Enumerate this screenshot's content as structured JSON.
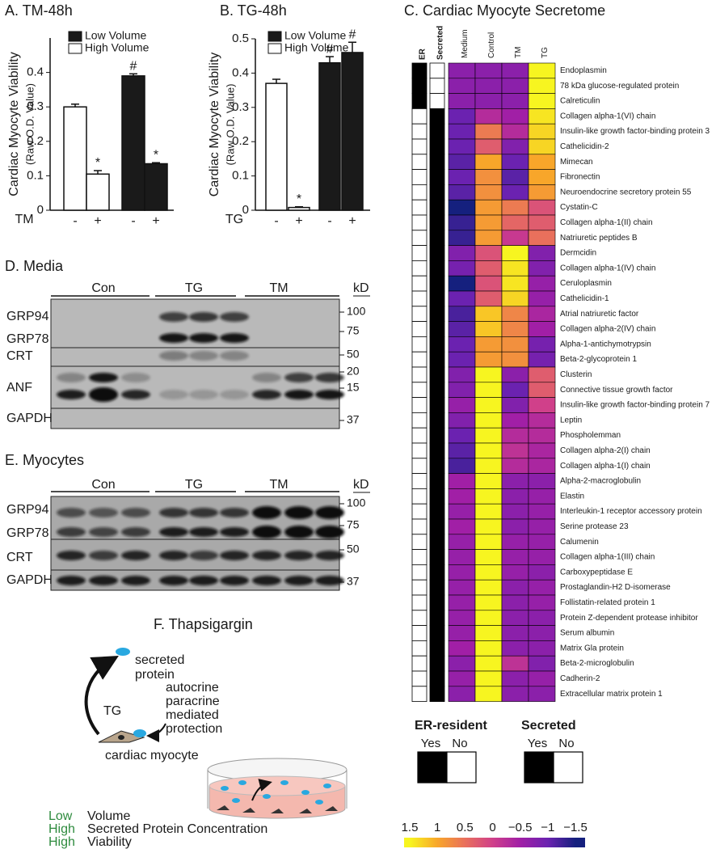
{
  "chart_data": [
    {
      "type": "bar",
      "title": "A. TM-48h",
      "ylabel": "Cardiac Myocyte Viability",
      "ylabel_sub": "(Raw O.D. Value)",
      "xlabel": "TM",
      "categories": [
        "-",
        "+",
        "-",
        "+"
      ],
      "ylim": [
        0,
        0.5
      ],
      "yticks": [
        0,
        0.1,
        0.2,
        0.3,
        0.4
      ],
      "series": [
        {
          "name": "Low Volume",
          "color": "#1a1a1a",
          "values": [
            null,
            null,
            0.39,
            0.135
          ],
          "errors": [
            null,
            null,
            0.006,
            0.003
          ],
          "annotations": [
            null,
            null,
            "#",
            "*"
          ]
        },
        {
          "name": "High Volume",
          "color": "#ffffff",
          "values": [
            0.3,
            0.105,
            null,
            null
          ],
          "errors": [
            0.008,
            0.01,
            null,
            null
          ],
          "annotations": [
            null,
            "*",
            null,
            null
          ]
        }
      ]
    },
    {
      "type": "bar",
      "title": "B. TG-48h",
      "ylabel": "Cardiac Myocyte Viability",
      "ylabel_sub": "(Raw O.D. Value)",
      "xlabel": "TG",
      "categories": [
        "-",
        "+",
        "-",
        "+"
      ],
      "ylim": [
        0,
        0.5
      ],
      "yticks": [
        0,
        0.1,
        0.2,
        0.3,
        0.4,
        0.5
      ],
      "series": [
        {
          "name": "Low Volume",
          "color": "#1a1a1a",
          "values": [
            null,
            null,
            0.43,
            0.46
          ],
          "errors": [
            null,
            null,
            0.018,
            0.03
          ],
          "annotations": [
            null,
            null,
            "#",
            "#"
          ]
        },
        {
          "name": "High Volume",
          "color": "#ffffff",
          "values": [
            0.37,
            0.008,
            null,
            null
          ],
          "errors": [
            0.012,
            0.002,
            null,
            null
          ],
          "annotations": [
            null,
            "*",
            null,
            null
          ]
        }
      ]
    },
    {
      "type": "heatmap",
      "title": "C. Cardiac Myocyte Secretome",
      "columns": [
        "Medium",
        "Control",
        "TM",
        "TG"
      ],
      "rows": [
        "Endoplasmin",
        "78 kDa glucose-regulated protein",
        "Calreticulin",
        "Collagen alpha-1(VI) chain",
        "Insulin-like growth factor-binding protein 3",
        "Cathelicidin-2",
        "Mimecan",
        "Fibronectin",
        "Neuroendocrine secretory protein 55",
        "Cystatin-C",
        "Collagen alpha-1(II) chain",
        "Natriuretic peptides B",
        "Dermcidin",
        "Collagen alpha-1(IV) chain",
        "Ceruloplasmin",
        "Cathelicidin-1",
        "Atrial natriuretic factor",
        "Collagen alpha-2(IV) chain",
        "Alpha-1-antichymotrypsin",
        "Beta-2-glycoprotein 1",
        "Clusterin",
        "Connective tissue growth factor",
        "Insulin-like growth factor-binding protein 7",
        "Leptin",
        "Phospholemman",
        "Collagen alpha-2(I) chain",
        "Collagen alpha-1(I) chain",
        "Alpha-2-macroglobulin",
        "Elastin",
        "Interleukin-1 receptor accessory protein",
        "Serine protease 23",
        "Calumenin",
        "Collagen alpha-1(III) chain",
        "Carboxypeptidase E",
        "Prostaglandin-H2 D-isomerase",
        "Follistatin-related protein 1",
        "Protein Z-dependent protease inhibitor",
        "Serum albumin",
        "Matrix Gla protein",
        "Beta-2-microglobulin",
        "Cadherin-2",
        "Extracellular matrix protein 1"
      ],
      "values": [
        [
          -0.7,
          -0.7,
          -0.7,
          1.5
        ],
        [
          -0.7,
          -0.7,
          -0.7,
          1.5
        ],
        [
          -0.7,
          -0.7,
          -0.7,
          1.5
        ],
        [
          -1.0,
          -0.3,
          -0.5,
          1.4
        ],
        [
          -1.0,
          0.6,
          -0.3,
          1.3
        ],
        [
          -1.0,
          0.3,
          -0.8,
          1.3
        ],
        [
          -1.1,
          1.0,
          -1.0,
          1.0
        ],
        [
          -1.0,
          0.8,
          -1.1,
          1.0
        ],
        [
          -1.1,
          0.8,
          -1.0,
          0.9
        ],
        [
          -1.5,
          0.9,
          0.6,
          0.2
        ],
        [
          -1.3,
          0.9,
          0.4,
          0.3
        ],
        [
          -1.3,
          0.9,
          -0.1,
          0.5
        ],
        [
          -0.8,
          0.2,
          1.5,
          -0.8
        ],
        [
          -0.9,
          0.3,
          1.4,
          -0.8
        ],
        [
          -1.5,
          0.2,
          1.4,
          -0.6
        ],
        [
          -1.0,
          0.3,
          1.3,
          -0.6
        ],
        [
          -1.2,
          1.2,
          0.7,
          -0.4
        ],
        [
          -1.1,
          1.2,
          0.7,
          -0.5
        ],
        [
          -1.0,
          0.9,
          0.8,
          -0.9
        ],
        [
          -1.0,
          0.9,
          0.8,
          -0.9
        ],
        [
          -0.8,
          1.5,
          -0.7,
          0.3
        ],
        [
          -0.8,
          1.5,
          -1.0,
          0.3
        ],
        [
          -0.6,
          1.5,
          -0.8,
          0.0
        ],
        [
          -0.8,
          1.5,
          -0.5,
          -0.3
        ],
        [
          -1.0,
          1.5,
          -0.3,
          -0.3
        ],
        [
          -1.1,
          1.5,
          -0.2,
          -0.4
        ],
        [
          -1.2,
          1.5,
          -0.3,
          -0.4
        ],
        [
          -0.5,
          1.5,
          -0.7,
          -0.7
        ],
        [
          -0.5,
          1.5,
          -0.7,
          -0.6
        ],
        [
          -0.6,
          1.5,
          -0.7,
          -0.6
        ],
        [
          -0.5,
          1.5,
          -0.7,
          -0.6
        ],
        [
          -0.6,
          1.5,
          -0.6,
          -0.6
        ],
        [
          -0.6,
          1.5,
          -0.6,
          -0.6
        ],
        [
          -0.6,
          1.5,
          -0.6,
          -0.7
        ],
        [
          -0.6,
          1.5,
          -0.7,
          -0.6
        ],
        [
          -0.6,
          1.5,
          -0.7,
          -0.6
        ],
        [
          -0.6,
          1.5,
          -0.7,
          -0.7
        ],
        [
          -0.6,
          1.5,
          -0.7,
          -0.7
        ],
        [
          -0.5,
          1.5,
          -0.7,
          -0.7
        ],
        [
          -0.7,
          1.5,
          -0.2,
          -0.8
        ],
        [
          -0.6,
          1.5,
          -0.7,
          -0.6
        ],
        [
          -0.7,
          1.5,
          -0.7,
          -0.7
        ]
      ],
      "annotation_columns": [
        {
          "name": "ER",
          "legend_title": "ER-resident",
          "values": [
            1,
            1,
            1,
            0,
            0,
            0,
            0,
            0,
            0,
            0,
            0,
            0,
            0,
            0,
            0,
            0,
            0,
            0,
            0,
            0,
            0,
            0,
            0,
            0,
            0,
            0,
            0,
            0,
            0,
            0,
            0,
            0,
            0,
            0,
            0,
            0,
            0,
            0,
            0,
            0,
            0,
            0
          ]
        },
        {
          "name": "Secreted",
          "legend_title": "Secreted",
          "values": [
            0,
            0,
            0,
            1,
            1,
            1,
            1,
            1,
            1,
            1,
            1,
            1,
            1,
            1,
            1,
            1,
            1,
            1,
            1,
            1,
            1,
            1,
            1,
            1,
            1,
            1,
            1,
            1,
            1,
            1,
            1,
            1,
            1,
            1,
            1,
            1,
            1,
            1,
            1,
            1,
            1,
            1
          ]
        }
      ],
      "annotation_labels": [
        "Yes",
        "No"
      ],
      "annotation_colors": [
        "#000000",
        "#ffffff"
      ],
      "clim": [
        1.5,
        -1.5
      ],
      "colorscale": [
        "#f7f520",
        "#f8a62a",
        "#e9705c",
        "#d0408a",
        "#a11fa6",
        "#6b22b0",
        "#15207e"
      ],
      "colorbar_ticks": [
        1.5,
        1,
        0.5,
        0,
        {
          "value": -0.5,
          "label": "−0.5"
        },
        {
          "value": -1,
          "label": "−1"
        },
        {
          "value": -1.5,
          "label": "−1.5"
        }
      ]
    }
  ],
  "blots": [
    {
      "title": "D. Media",
      "groups": [
        "Con",
        "TG",
        "TM"
      ],
      "unit": "kD",
      "bands": [
        "GRP94",
        "GRP78",
        "CRT",
        "ANF",
        "GAPDH"
      ],
      "markers": [
        100,
        75,
        50,
        20,
        15,
        37
      ]
    },
    {
      "title": "E. Myocytes",
      "groups": [
        "Con",
        "TG",
        "TM"
      ],
      "unit": "kD",
      "bands": [
        "GRP94",
        "GRP78",
        "CRT",
        "GAPDH"
      ],
      "markers": [
        100,
        75,
        50,
        37
      ]
    }
  ],
  "diagram": {
    "title": "F. Thapsigargin",
    "secreted": [
      "secreted",
      "protein"
    ],
    "effect": [
      "autocrine",
      "paracrine",
      "mediated",
      "protection"
    ],
    "arrow": "TG",
    "cell": "cardiac myocyte",
    "conditions": [
      {
        "level": "Low",
        "label": "Volume"
      },
      {
        "level": "High",
        "label": "Secreted Protein Concentration"
      },
      {
        "level": "High",
        "label": "Viability"
      }
    ]
  }
}
